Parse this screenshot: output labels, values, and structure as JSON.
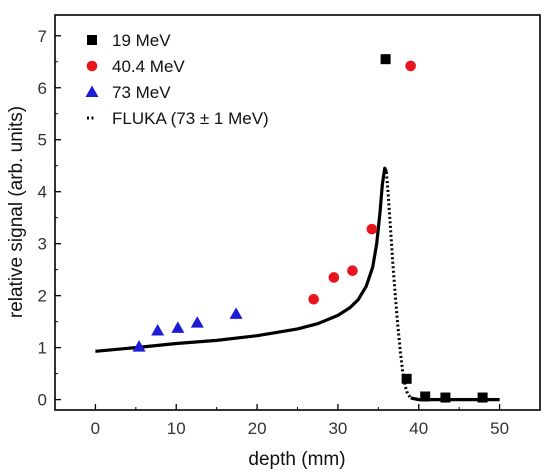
{
  "chart_data": {
    "type": "scatter",
    "title": "",
    "xlabel": "depth (mm)",
    "ylabel": "relative signal (arb. units)",
    "xlim": [
      -5,
      55
    ],
    "ylim": [
      -0.2,
      7.4
    ],
    "xticks": [
      0,
      10,
      20,
      30,
      40,
      50
    ],
    "yticks": [
      0,
      1,
      2,
      3,
      4,
      5,
      6,
      7
    ],
    "grid": false,
    "legend_position": "top-left",
    "series": [
      {
        "name": "19 MeV",
        "marker": "square",
        "color": "#000000",
        "points": [
          [
            35.9,
            6.55
          ],
          [
            38.5,
            0.4
          ],
          [
            40.8,
            0.06
          ],
          [
            43.3,
            0.04
          ],
          [
            47.9,
            0.04
          ]
        ]
      },
      {
        "name": "40.4 MeV",
        "marker": "circle",
        "color": "#e8141e",
        "points": [
          [
            27.0,
            1.93
          ],
          [
            29.5,
            2.35
          ],
          [
            31.8,
            2.48
          ],
          [
            34.2,
            3.28
          ],
          [
            39.0,
            6.42
          ]
        ]
      },
      {
        "name": "73 MeV",
        "marker": "triangle",
        "color": "#1c1cd8",
        "points": [
          [
            5.4,
            1.02
          ],
          [
            7.7,
            1.33
          ],
          [
            10.2,
            1.38
          ],
          [
            12.6,
            1.48
          ],
          [
            17.4,
            1.65
          ]
        ]
      },
      {
        "name": "FLUKA (73 ± 1 MeV)",
        "marker": "dotted-line",
        "color": "#000000",
        "points": [
          [
            0,
            0.93
          ],
          [
            5,
            1.0
          ],
          [
            10,
            1.08
          ],
          [
            15,
            1.14
          ],
          [
            20,
            1.23
          ],
          [
            25,
            1.36
          ],
          [
            27.5,
            1.46
          ],
          [
            30,
            1.62
          ],
          [
            31.5,
            1.77
          ],
          [
            32.5,
            1.92
          ],
          [
            33.5,
            2.18
          ],
          [
            34.3,
            2.55
          ],
          [
            34.8,
            3.0
          ],
          [
            35.2,
            3.6
          ],
          [
            35.5,
            4.15
          ],
          [
            35.8,
            4.45
          ],
          [
            36.0,
            4.38
          ],
          [
            36.2,
            4.0
          ],
          [
            36.5,
            3.3
          ],
          [
            36.8,
            2.6
          ],
          [
            37.1,
            2.0
          ],
          [
            37.4,
            1.45
          ],
          [
            37.7,
            0.95
          ],
          [
            38.0,
            0.55
          ],
          [
            38.3,
            0.28
          ],
          [
            38.6,
            0.12
          ],
          [
            39.0,
            0.03
          ],
          [
            40,
            0.0
          ],
          [
            45,
            0.0
          ],
          [
            50,
            0.0
          ]
        ]
      }
    ]
  }
}
